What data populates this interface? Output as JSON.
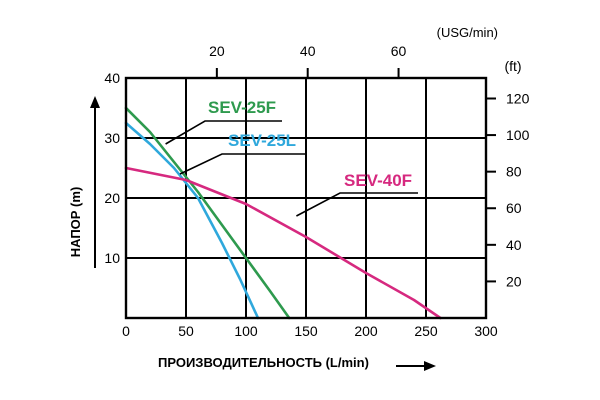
{
  "chart_data": {
    "type": "line",
    "xlabel": "ПРОИЗВОДИТЕЛЬНОСТЬ (L/min)",
    "ylabel": "НАПОР  (m)",
    "x_ticks": [
      "0",
      "50",
      "100",
      "150",
      "200",
      "250",
      "300"
    ],
    "y_ticks": [
      "10",
      "20",
      "30",
      "40"
    ],
    "xlim": [
      0,
      300
    ],
    "ylim": [
      0,
      40
    ],
    "grid": true,
    "top_axis": {
      "unit": "(USG/min)",
      "range": [
        0,
        79.25
      ],
      "ticks": [
        {
          "value": 20,
          "label": "20"
        },
        {
          "value": 40,
          "label": "40"
        },
        {
          "value": 60,
          "label": "60"
        }
      ]
    },
    "right_axis": {
      "unit": "(ft)",
      "range": [
        0,
        131.2
      ],
      "ticks": [
        {
          "value": 20,
          "label": "20"
        },
        {
          "value": 40,
          "label": "40"
        },
        {
          "value": 60,
          "label": "60"
        },
        {
          "value": 80,
          "label": "80"
        },
        {
          "value": 100,
          "label": "100"
        },
        {
          "value": 120,
          "label": "120"
        }
      ]
    },
    "series": [
      {
        "name": "SEV-25F",
        "color": "#2e9a4e",
        "x": [
          0,
          20,
          40,
          60,
          80,
          100,
          120,
          136
        ],
        "y": [
          35,
          31,
          26,
          21,
          15.5,
          10,
          4.5,
          0
        ],
        "label_anchor_x": 33,
        "label_anchor_y": 29
      },
      {
        "name": "SEV-25L",
        "color": "#2fa8dc",
        "x": [
          0,
          20,
          40,
          60,
          80,
          95,
          110
        ],
        "y": [
          32.5,
          29,
          25,
          20,
          12.5,
          6.5,
          0
        ],
        "label_anchor_x": 45,
        "label_anchor_y": 24
      },
      {
        "name": "SEV-40F",
        "color": "#d6297f",
        "x": [
          0,
          50,
          100,
          150,
          200,
          240,
          262
        ],
        "y": [
          25,
          23,
          19,
          13.5,
          7.5,
          3,
          0
        ],
        "label_anchor_x": 142,
        "label_anchor_y": 17
      }
    ]
  }
}
